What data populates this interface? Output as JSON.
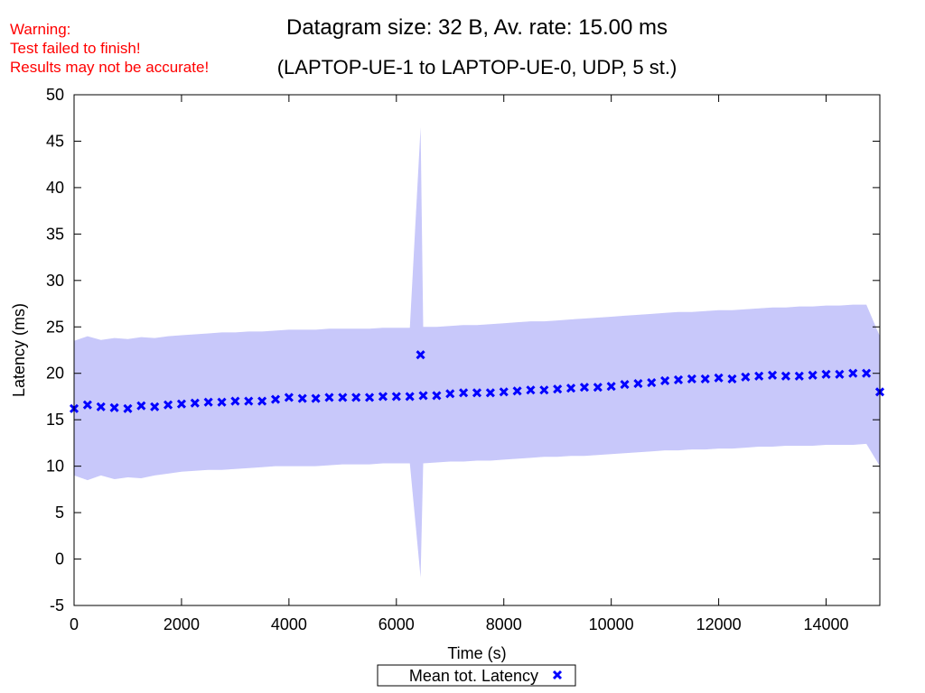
{
  "warning": {
    "line1": "Warning:",
    "line2": "Test failed to finish!",
    "line3": "Results may not be accurate!",
    "color": "#ff0000"
  },
  "chart_data": {
    "type": "scatter",
    "title": "Datagram size: 32 B, Av. rate: 15.00 ms",
    "subtitle": "(LAPTOP-UE-1 to LAPTOP-UE-0, UDP, 5 st.)",
    "xlabel": "Time (s)",
    "ylabel": "Latency (ms)",
    "xlim": [
      0,
      15000
    ],
    "ylim": [
      -5,
      50
    ],
    "x_ticks": [
      0,
      2000,
      4000,
      6000,
      8000,
      10000,
      12000,
      14000
    ],
    "y_ticks": [
      -5,
      0,
      5,
      10,
      15,
      20,
      25,
      30,
      35,
      40,
      45,
      50
    ],
    "grid": false,
    "legend_position": "bottom-center",
    "series": [
      {
        "name": "Mean tot. Latency",
        "marker": "x",
        "color": "#0000ff",
        "band_color": "#c8c8fa",
        "x": [
          0,
          250,
          500,
          750,
          1000,
          1250,
          1500,
          1750,
          2000,
          2250,
          2500,
          2750,
          3000,
          3250,
          3500,
          3750,
          4000,
          4250,
          4500,
          4750,
          5000,
          5250,
          5500,
          5750,
          6000,
          6250,
          6450,
          6500,
          6750,
          7000,
          7250,
          7500,
          7750,
          8000,
          8250,
          8500,
          8750,
          9000,
          9250,
          9500,
          9750,
          10000,
          10250,
          10500,
          10750,
          11000,
          11250,
          11500,
          11750,
          12000,
          12250,
          12500,
          12750,
          13000,
          13250,
          13500,
          13750,
          14000,
          14250,
          14500,
          14750,
          15000
        ],
        "y": [
          16.2,
          16.6,
          16.4,
          16.3,
          16.2,
          16.5,
          16.4,
          16.6,
          16.7,
          16.8,
          16.9,
          16.9,
          17.0,
          17.0,
          17.0,
          17.2,
          17.4,
          17.3,
          17.3,
          17.4,
          17.4,
          17.4,
          17.4,
          17.5,
          17.5,
          17.5,
          22.0,
          17.6,
          17.6,
          17.8,
          17.9,
          17.9,
          17.9,
          18.0,
          18.1,
          18.2,
          18.2,
          18.3,
          18.4,
          18.5,
          18.5,
          18.6,
          18.8,
          18.9,
          19.0,
          19.2,
          19.3,
          19.4,
          19.4,
          19.5,
          19.4,
          19.6,
          19.7,
          19.8,
          19.7,
          19.7,
          19.8,
          19.9,
          19.9,
          20.0,
          20.0,
          18.0
        ],
        "y_low": [
          9.0,
          8.5,
          9.0,
          8.6,
          8.8,
          8.7,
          9.0,
          9.2,
          9.4,
          9.5,
          9.6,
          9.6,
          9.7,
          9.8,
          9.9,
          10.0,
          10.0,
          10.0,
          10.0,
          10.1,
          10.2,
          10.2,
          10.2,
          10.3,
          10.3,
          10.3,
          -2.0,
          10.3,
          10.4,
          10.5,
          10.5,
          10.6,
          10.6,
          10.7,
          10.8,
          10.9,
          11.0,
          11.0,
          11.1,
          11.1,
          11.2,
          11.3,
          11.4,
          11.5,
          11.6,
          11.7,
          11.7,
          11.8,
          11.8,
          11.9,
          11.9,
          12.0,
          12.1,
          12.1,
          12.2,
          12.2,
          12.2,
          12.3,
          12.3,
          12.3,
          12.4,
          10.0
        ],
        "y_high": [
          23.5,
          24.0,
          23.6,
          23.8,
          23.7,
          23.9,
          23.8,
          24.0,
          24.1,
          24.2,
          24.3,
          24.4,
          24.4,
          24.5,
          24.5,
          24.6,
          24.7,
          24.7,
          24.7,
          24.8,
          24.8,
          24.8,
          24.8,
          24.9,
          24.9,
          24.9,
          46.5,
          25.0,
          25.0,
          25.1,
          25.2,
          25.2,
          25.3,
          25.4,
          25.5,
          25.6,
          25.6,
          25.7,
          25.8,
          25.9,
          26.0,
          26.1,
          26.2,
          26.3,
          26.4,
          26.5,
          26.6,
          26.6,
          26.7,
          26.8,
          26.8,
          26.9,
          27.0,
          27.1,
          27.1,
          27.2,
          27.2,
          27.3,
          27.3,
          27.4,
          27.4,
          24.0
        ]
      }
    ]
  }
}
